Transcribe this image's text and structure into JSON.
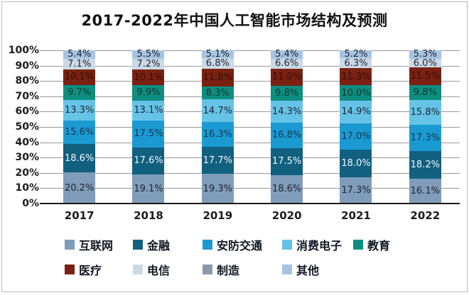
{
  "title": "2017-2022年中国人工智能市场结构及预测",
  "chart_data": {
    "type": "bar",
    "subtype": "stacked-100-percent",
    "title": "2017-2022年中国人工智能市场结构及预测",
    "categories": [
      "2017",
      "2018",
      "2019",
      "2020",
      "2021",
      "2022"
    ],
    "y_ticks": [
      "100%",
      "90%",
      "80%",
      "70%",
      "60%",
      "50%",
      "40%",
      "30%",
      "20%",
      "10%",
      "0%"
    ],
    "ylim": [
      0,
      100
    ],
    "grid": true,
    "value_suffix": "%",
    "legend_position": "bottom",
    "series": [
      {
        "name": "互联网",
        "color": "#7f9cba",
        "label_color": "#1f242e",
        "values": [
          20.2,
          19.1,
          19.3,
          18.6,
          17.3,
          16.1
        ]
      },
      {
        "name": "金融",
        "color": "#11607f",
        "label_color": "#f4f7fa",
        "values": [
          18.6,
          17.6,
          17.7,
          17.5,
          18.0,
          18.2
        ]
      },
      {
        "name": "安防交通",
        "color": "#1b9ad2",
        "label_color": "#16354d",
        "values": [
          15.6,
          17.5,
          16.3,
          16.8,
          17.0,
          17.3
        ]
      },
      {
        "name": "消费电子",
        "color": "#66c3e8",
        "label_color": "#1f242e",
        "values": [
          13.3,
          13.1,
          14.7,
          14.3,
          14.9,
          15.8
        ]
      },
      {
        "name": "教育",
        "color": "#0e8e80",
        "label_color": "#10382f",
        "values": [
          9.7,
          9.9,
          8.3,
          9.8,
          10.0,
          9.8
        ]
      },
      {
        "name": "医疗",
        "color": "#7a2112",
        "label_color": "#340f07",
        "values": [
          10.1,
          10.1,
          11.8,
          11.0,
          11.3,
          11.5
        ]
      },
      {
        "name": "电信",
        "color": "#cbd9e7",
        "label_color": "#1f242e",
        "values": [
          7.1,
          7.2,
          6.8,
          6.6,
          6.3,
          6.0
        ]
      },
      {
        "name": "制造",
        "color": "#8b9aaa",
        "label_color": "#1f242e",
        "values": [
          0,
          0,
          0,
          0,
          0,
          0
        ]
      },
      {
        "name": "其他",
        "color": "#a5c4e2",
        "label_color": "#1f242e",
        "values": [
          5.4,
          5.5,
          5.1,
          5.4,
          5.2,
          5.3
        ]
      }
    ],
    "legend_rows": [
      [
        "互联网",
        "金融",
        "安防交通",
        "消费电子",
        "教育"
      ],
      [
        "医疗",
        "电信",
        "制造",
        "其他"
      ]
    ]
  },
  "style_colors": {
    "grid": "#989898",
    "axis": "#1b1b1b",
    "frame_border": "#b9bcbf",
    "background": "#ffffff"
  }
}
